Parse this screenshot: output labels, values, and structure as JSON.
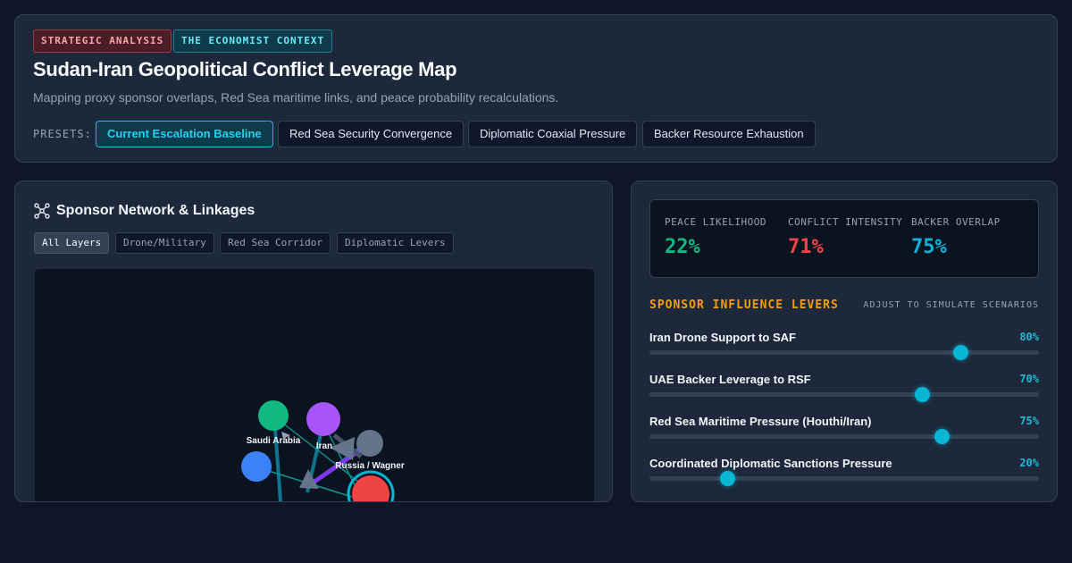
{
  "header": {
    "badges": [
      "STRATEGIC ANALYSIS",
      "THE ECONOMIST CONTEXT"
    ],
    "title": "Sudan-Iran Geopolitical Conflict Leverage Map",
    "subtitle": "Mapping proxy sponsor overlaps, Red Sea maritime links, and peace probability recalculations.",
    "presets_label": "PRESETS:",
    "presets": [
      {
        "label": "Current Escalation Baseline",
        "active": true
      },
      {
        "label": "Red Sea Security Convergence",
        "active": false
      },
      {
        "label": "Diplomatic Coaxial Pressure",
        "active": false
      },
      {
        "label": "Backer Resource Exhaustion",
        "active": false
      }
    ]
  },
  "network": {
    "icon": "network-icon",
    "title": "Sponsor Network & Linkages",
    "layers": [
      {
        "label": "All Layers",
        "active": true
      },
      {
        "label": "Drone/Military",
        "active": false
      },
      {
        "label": "Red Sea Corridor",
        "active": false
      },
      {
        "label": "Diplomatic Levers",
        "active": false
      }
    ],
    "nodes": [
      {
        "label": "Saudi Arabia",
        "color": "#10b981"
      },
      {
        "label": "Iran",
        "color": "#a855f7"
      },
      {
        "label": "Russia / Wagner",
        "color": "#64748b"
      },
      {
        "label": "",
        "color": "#3b82f6"
      },
      {
        "label": "",
        "color": "#ef4444"
      }
    ]
  },
  "metrics": [
    {
      "label": "PEACE LIKELIHOOD",
      "value": "22%",
      "color": "#10b981"
    },
    {
      "label": "CONFLICT INTENSITY",
      "value": "71%",
      "color": "#ef4444"
    },
    {
      "label": "BACKER OVERLAP",
      "value": "75%",
      "color": "#06b6d4"
    }
  ],
  "levers": {
    "title": "SPONSOR INFLUENCE LEVERS",
    "hint": "ADJUST TO SIMULATE SCENARIOS",
    "items": [
      {
        "name": "Iran Drone Support to SAF",
        "value": "80%",
        "level": 0.8
      },
      {
        "name": "UAE Backer Leverage to RSF",
        "value": "70%",
        "level": 0.7
      },
      {
        "name": "Red Sea Maritime Pressure (Houthi/Iran)",
        "value": "75%",
        "level": 0.75
      },
      {
        "name": "Coordinated Diplomatic Sanctions Pressure",
        "value": "20%",
        "level": 0.2
      }
    ]
  }
}
